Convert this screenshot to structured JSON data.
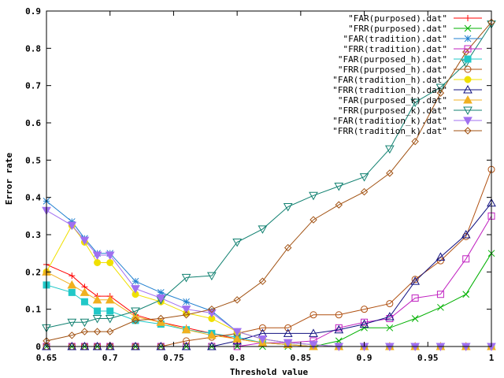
{
  "chart_data": {
    "type": "line",
    "title": "",
    "xlabel": "Threshold value",
    "ylabel": "Error rate",
    "xlim": [
      0.65,
      1
    ],
    "ylim": [
      0,
      0.9
    ],
    "xticks": [
      0.65,
      0.7,
      0.75,
      0.8,
      0.85,
      0.9,
      0.95,
      1
    ],
    "xtick_labels": [
      "0.65",
      "0.7",
      "0.75",
      "0.8",
      "0.85",
      "0.9",
      "0.95",
      "1"
    ],
    "yticks": [
      0,
      0.1,
      0.2,
      0.3,
      0.4,
      0.5,
      0.6,
      0.7,
      0.8,
      0.9
    ],
    "ytick_labels": [
      "0",
      "0.1",
      "0.2",
      "0.3",
      "0.4",
      "0.5",
      "0.6",
      "0.7",
      "0.8",
      "0.9"
    ],
    "grid": false,
    "legend_position": "top-right",
    "x": [
      0.65,
      0.67,
      0.68,
      0.69,
      0.7,
      0.72,
      0.74,
      0.76,
      0.78,
      0.8,
      0.82,
      0.84,
      0.86,
      0.88,
      0.9,
      0.92,
      0.94,
      0.96,
      0.98,
      1
    ],
    "series": [
      {
        "name": "\"FAR(purposed).dat\"",
        "color": "#ff0000",
        "marker": "plus",
        "values": [
          0.22,
          0.19,
          0.16,
          0.135,
          0.135,
          0.085,
          0.065,
          0.05,
          0.035,
          0.02,
          0.01,
          0.005,
          0,
          0,
          0,
          0,
          0,
          0,
          0,
          0
        ]
      },
      {
        "name": "\"FRR(purposed).dat\"",
        "color": "#00b000",
        "marker": "cross",
        "values": [
          0,
          0,
          0,
          0,
          0,
          0,
          0,
          0,
          0,
          0,
          0,
          0,
          0,
          0.015,
          0.05,
          0.05,
          0.075,
          0.105,
          0.14,
          0.25
        ]
      },
      {
        "name": "\"FAR(tradition).dat\"",
        "color": "#2080d0",
        "marker": "star",
        "values": [
          0.39,
          0.335,
          0.29,
          0.25,
          0.25,
          0.175,
          0.145,
          0.12,
          0.095,
          0.04,
          0.02,
          0.01,
          0.005,
          0,
          0,
          0,
          0,
          0,
          0,
          0
        ]
      },
      {
        "name": "\"FRR(tradition).dat\"",
        "color": "#c020c0",
        "marker": "square",
        "values": [
          0,
          0,
          0,
          0,
          0,
          0,
          0,
          0,
          0,
          0,
          0.01,
          0.01,
          0.015,
          0.05,
          0.065,
          0.075,
          0.13,
          0.14,
          0.235,
          0.35
        ]
      },
      {
        "name": "\"FAR(purposed_h).dat\"",
        "color": "#20c8c8",
        "marker": "filled-square",
        "values": [
          0.165,
          0.145,
          0.12,
          0.095,
          0.095,
          0.07,
          0.06,
          0.045,
          0.035,
          0.025,
          0.01,
          0.005,
          0,
          0,
          0,
          0,
          0,
          0,
          0,
          0
        ]
      },
      {
        "name": "\"FRR(purposed_h).dat\"",
        "color": "#b05010",
        "marker": "circle",
        "values": [
          0,
          0,
          0,
          0,
          0,
          0,
          0,
          0.015,
          0.025,
          0.035,
          0.05,
          0.05,
          0.085,
          0.085,
          0.1,
          0.115,
          0.18,
          0.23,
          0.295,
          0.475
        ]
      },
      {
        "name": "\"FAR(tradition_h).dat\"",
        "color": "#f0e000",
        "marker": "filled-circle",
        "values": [
          0.2,
          0.325,
          0.28,
          0.225,
          0.225,
          0.14,
          0.12,
          0.09,
          0.075,
          0.04,
          0.02,
          0.01,
          0.005,
          0,
          0,
          0,
          0,
          0,
          0,
          0
        ]
      },
      {
        "name": "\"FRR(tradition_h).dat\"",
        "color": "#101080",
        "marker": "triangle",
        "values": [
          0,
          0,
          0,
          0,
          0,
          0,
          0,
          0,
          0,
          0.015,
          0.035,
          0.035,
          0.035,
          0.045,
          0.06,
          0.08,
          0.175,
          0.24,
          0.3,
          0.385
        ]
      },
      {
        "name": "\"FAR(purposed_k).dat\"",
        "color": "#f0b020",
        "marker": "filled-triangle",
        "values": [
          0.2,
          0.165,
          0.145,
          0.125,
          0.125,
          0.08,
          0.065,
          0.045,
          0.03,
          0.02,
          0.01,
          0.005,
          0,
          0,
          0,
          0,
          0,
          0,
          0,
          0
        ]
      },
      {
        "name": "\"FRR(purposed_k).dat\"",
        "color": "#108070",
        "marker": "inverted-triangle",
        "values": [
          0.05,
          0.065,
          0.065,
          0.075,
          0.075,
          0.095,
          0.125,
          0.185,
          0.19,
          0.28,
          0.315,
          0.375,
          0.405,
          0.43,
          0.455,
          0.53,
          0.655,
          0.695,
          0.76,
          0.865
        ]
      },
      {
        "name": "\"FAR(tradition_k).dat\"",
        "color": "#a070f0",
        "marker": "filled-inverted-triangle",
        "values": [
          0.365,
          0.325,
          0.285,
          0.245,
          0.245,
          0.155,
          0.13,
          0.1,
          0.09,
          0.04,
          0.02,
          0.01,
          0.005,
          0,
          0,
          0,
          0,
          0,
          0,
          0
        ]
      },
      {
        "name": "\"FRR(tradition_k).dat\"",
        "color": "#a05010",
        "marker": "diamond",
        "values": [
          0.015,
          0.03,
          0.04,
          0.04,
          0.04,
          0.07,
          0.075,
          0.085,
          0.1,
          0.125,
          0.175,
          0.265,
          0.34,
          0.38,
          0.415,
          0.465,
          0.55,
          0.68,
          0.79,
          0.87
        ]
      }
    ]
  }
}
